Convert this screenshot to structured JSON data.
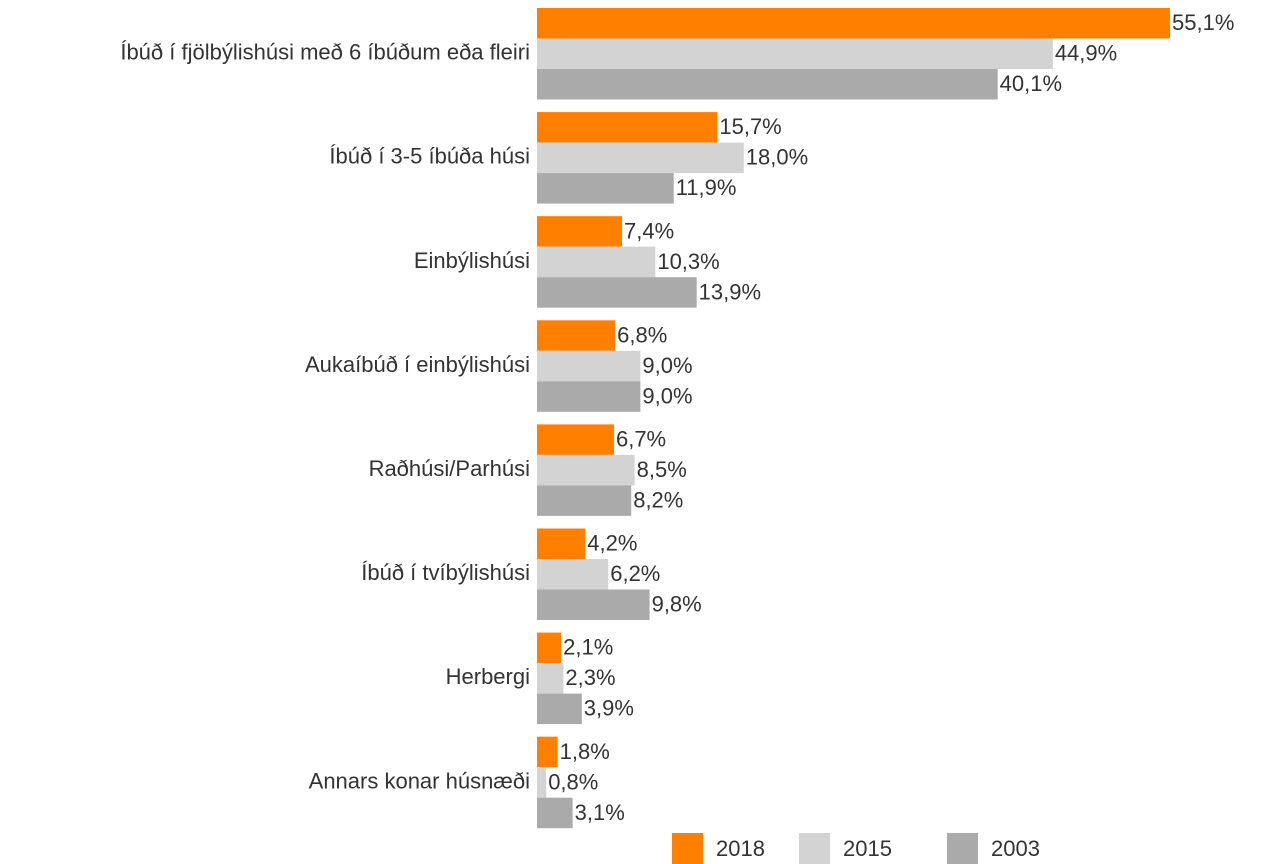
{
  "chart_data": {
    "type": "bar",
    "orientation": "horizontal",
    "categories": [
      "Íbúð í fjölbýlishúsi með 6 íbúðum eða fleiri",
      "Íbúð í 3-5 íbúða húsi",
      "Einbýlishúsi",
      "Aukaíbúð í einbýlishúsi",
      "Raðhúsi/Parhúsi",
      "Íbúð í tvíbýlishúsi",
      "Herbergi",
      "Annars konar húsnæði"
    ],
    "series": [
      {
        "name": "2018",
        "color": "#ff8000",
        "values": [
          55.1,
          15.7,
          7.4,
          6.8,
          6.7,
          4.2,
          2.1,
          1.8
        ],
        "value_labels": [
          "55,1%",
          "15,7%",
          "7,4%",
          "6,8%",
          "6,7%",
          "4,2%",
          "2,1%",
          "1,8%"
        ]
      },
      {
        "name": "2015",
        "color": "#d3d3d3",
        "values": [
          44.9,
          18.0,
          10.3,
          9.0,
          8.5,
          6.2,
          2.3,
          0.8
        ],
        "value_labels": [
          "44,9%",
          "18,0%",
          "10,3%",
          "9,0%",
          "8,5%",
          "6,2%",
          "2,3%",
          "0,8%"
        ]
      },
      {
        "name": "2003",
        "color": "#aaaaaa",
        "values": [
          40.1,
          11.9,
          13.9,
          9.0,
          8.2,
          9.8,
          3.9,
          3.1
        ],
        "value_labels": [
          "40,1%",
          "11,9%",
          "13,9%",
          "9,0%",
          "8,2%",
          "9,8%",
          "3,9%",
          "3,1%"
        ]
      }
    ],
    "legend": "bottom"
  }
}
